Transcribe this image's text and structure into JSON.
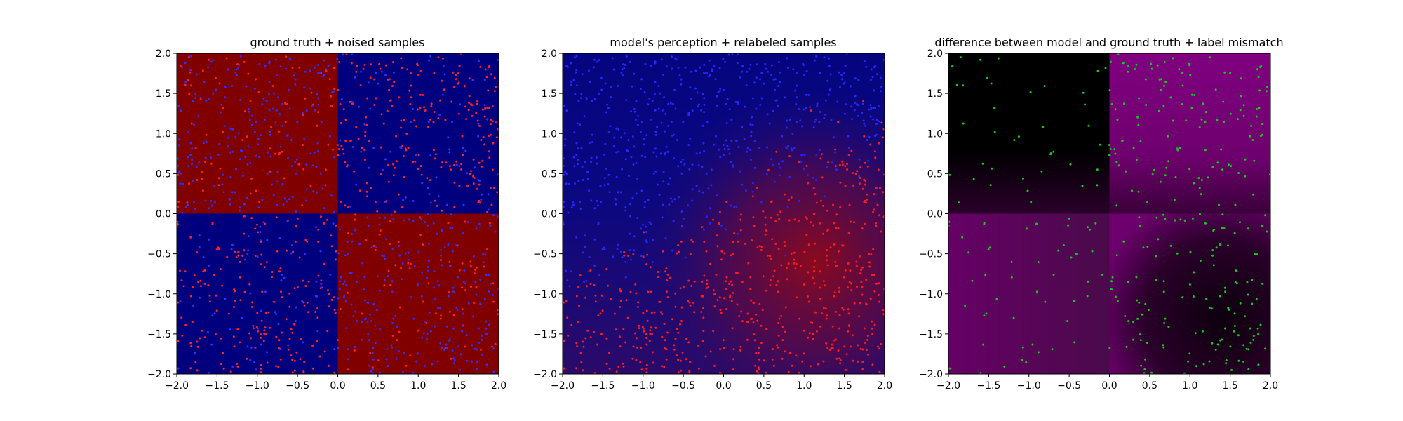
{
  "chart_data": [
    {
      "type": "heatmap",
      "title": "ground truth + noised samples",
      "xlabel": "",
      "ylabel": "",
      "xlim": [
        -2.0,
        2.0
      ],
      "ylim": [
        -2.0,
        2.0
      ],
      "xticks": [
        "−2.0",
        "−1.5",
        "−1.0",
        "−0.5",
        "0.0",
        "0.5",
        "1.0",
        "1.5",
        "2.0"
      ],
      "yticks": [
        "−2.0",
        "−1.5",
        "−1.0",
        "−0.5",
        "0.0",
        "0.5",
        "1.0",
        "1.5",
        "2.0"
      ],
      "background": {
        "pattern": "xor-quadrants",
        "regions": [
          {
            "quadrant": "top-left",
            "color": "#800000"
          },
          {
            "quadrant": "top-right",
            "color": "#00007f"
          },
          {
            "quadrant": "bottom-left",
            "color": "#00007f"
          },
          {
            "quadrant": "bottom-right",
            "color": "#800000"
          }
        ]
      },
      "scatter": {
        "description_colors": [
          "#ff0000",
          "#0000ff"
        ],
        "approx_points": 1200,
        "marker": "dot"
      },
      "grid": false
    },
    {
      "type": "heatmap",
      "title": "model's perception + relabeled samples",
      "xlabel": "",
      "ylabel": "",
      "xlim": [
        -2.0,
        2.0
      ],
      "ylim": [
        -2.0,
        2.0
      ],
      "xticks": [
        "−2.0",
        "−1.5",
        "−1.0",
        "−0.5",
        "0.0",
        "0.5",
        "1.0",
        "1.5",
        "2.0"
      ],
      "yticks": [
        "−2.0",
        "−1.5",
        "−1.0",
        "−0.5",
        "0.0",
        "0.5",
        "1.0",
        "1.5",
        "2.0"
      ],
      "background": {
        "pattern": "smooth-gradient",
        "top_color": "#0d0880",
        "bottom_right_color": "#7a0a1a",
        "bottom_left_color": "#2a0a70"
      },
      "scatter": {
        "colors": [
          "#ff0000",
          "#0000ff"
        ],
        "approx_points": 1200,
        "marker": "dot"
      },
      "grid": false
    },
    {
      "type": "heatmap",
      "title": "difference between model and ground truth + label mismatch",
      "xlabel": "",
      "ylabel": "",
      "xlim": [
        -2.0,
        2.0
      ],
      "ylim": [
        -2.0,
        2.0
      ],
      "xticks": [
        "−2.0",
        "−1.5",
        "−1.0",
        "−0.5",
        "0.0",
        "0.5",
        "1.0",
        "1.5",
        "2.0"
      ],
      "yticks": [
        "−2.0",
        "−1.5",
        "−1.0",
        "−0.5",
        "0.0",
        "0.5",
        "1.0",
        "1.5",
        "2.0"
      ],
      "background": {
        "pattern": "difference-quadrants",
        "regions": [
          {
            "quadrant": "top-left",
            "color": "#000000"
          },
          {
            "quadrant": "top-right",
            "color": "#800080"
          },
          {
            "quadrant": "bottom-left",
            "color": "#5a0a5a"
          },
          {
            "quadrant": "bottom-right",
            "color": "#2a002a"
          }
        ]
      },
      "scatter": {
        "colors": [
          "#00cc00"
        ],
        "approx_points": 320,
        "marker": "dot"
      },
      "grid": false
    }
  ]
}
